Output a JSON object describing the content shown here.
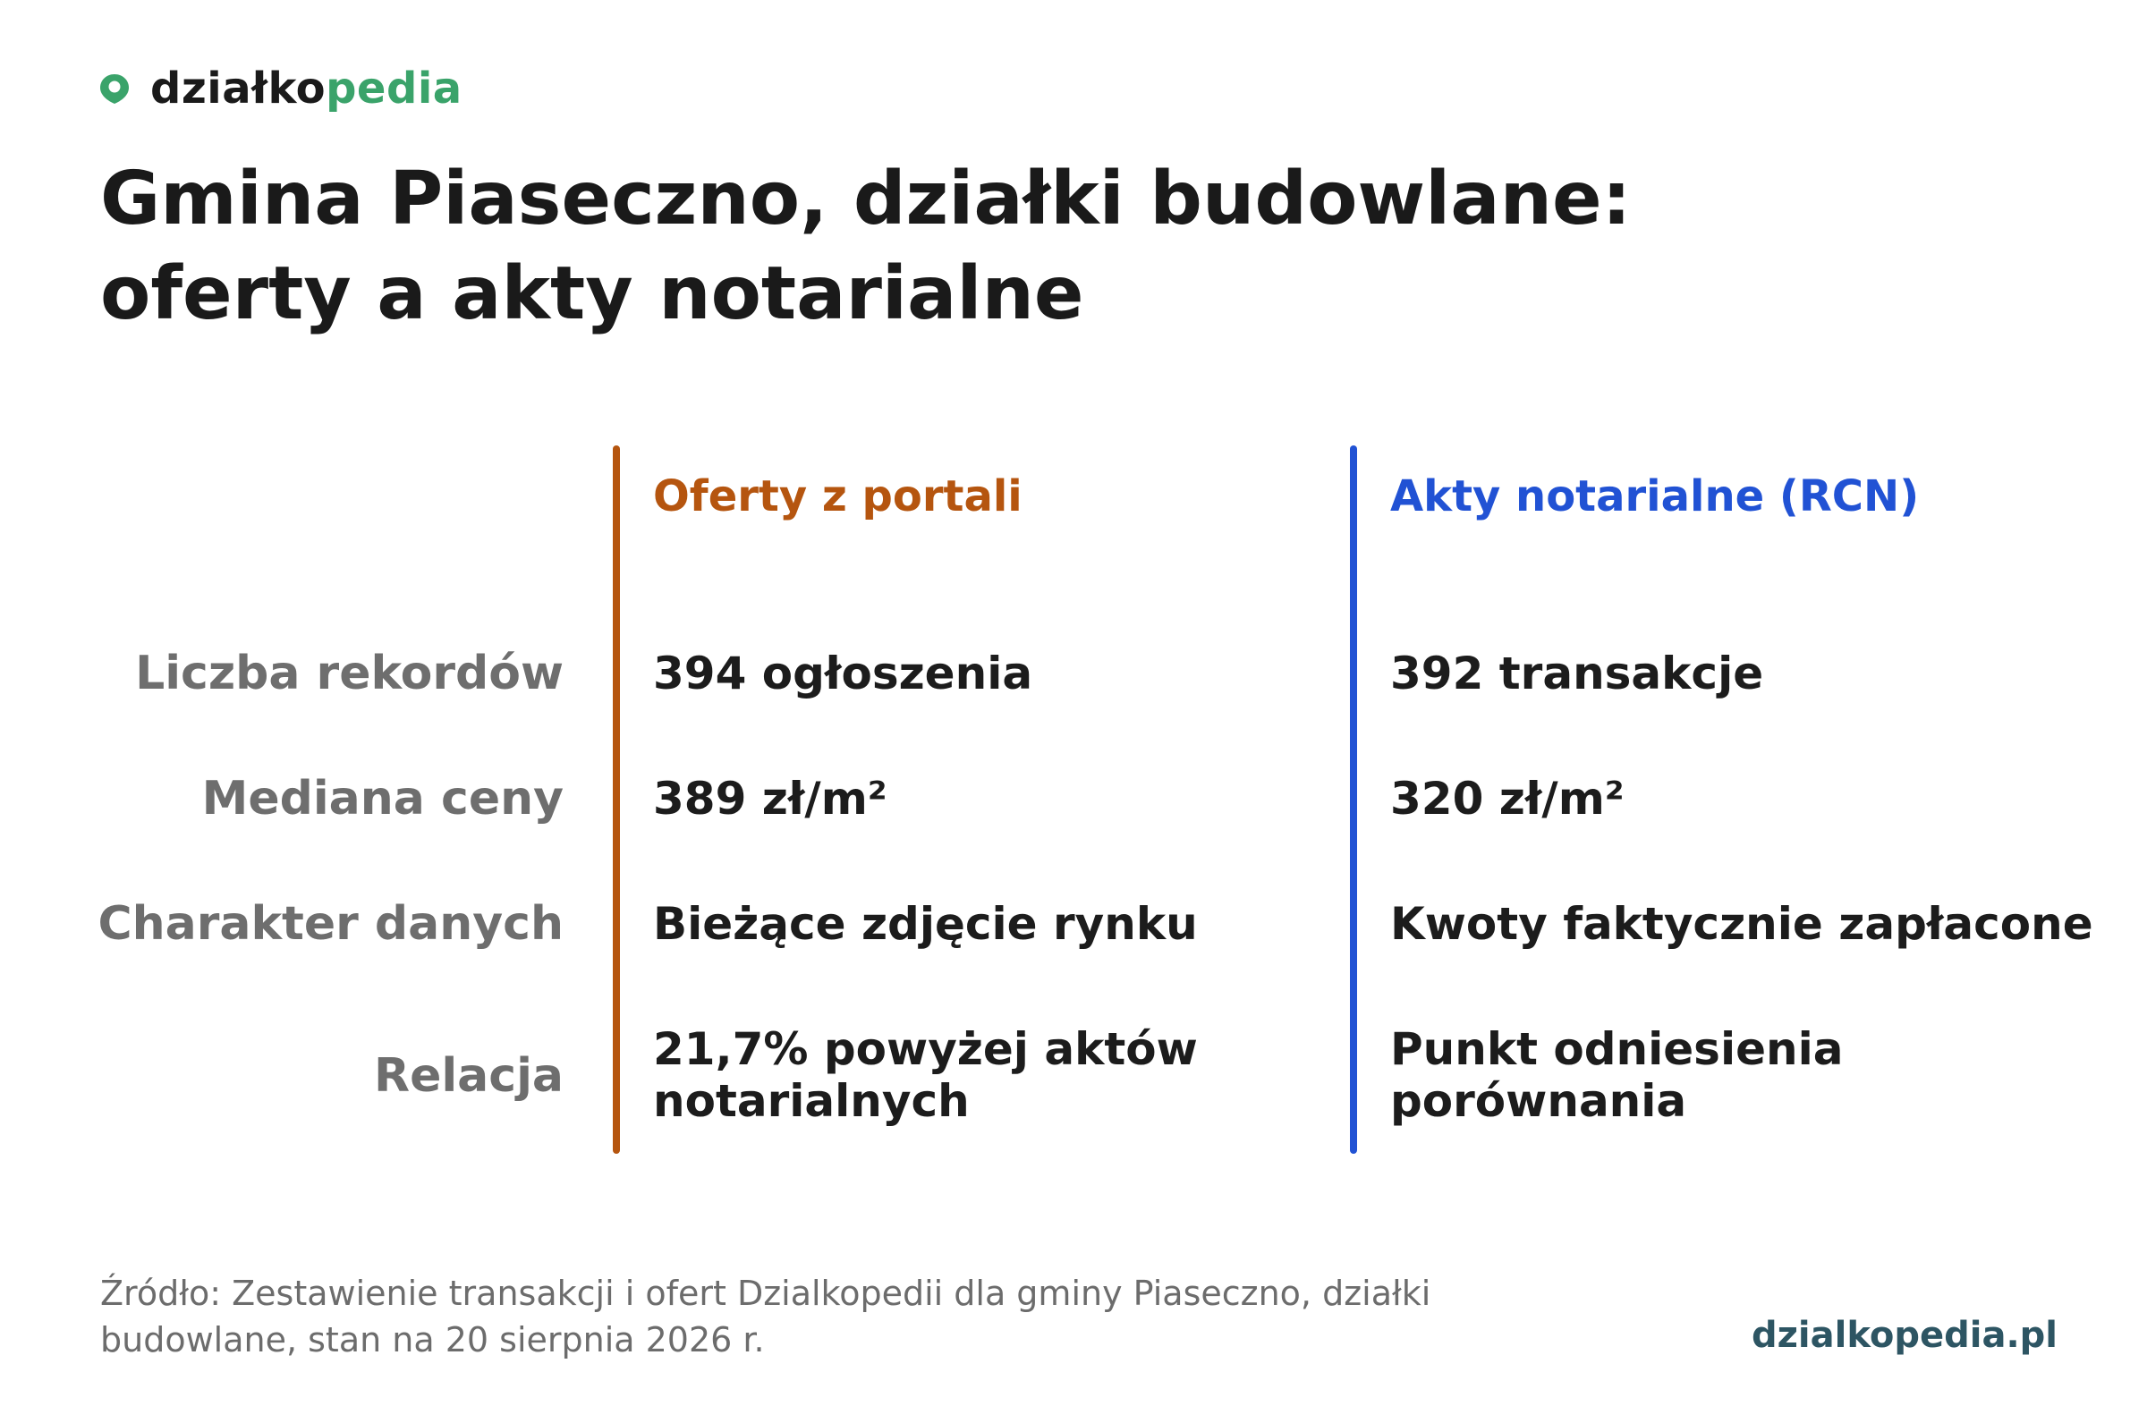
{
  "brand": {
    "name_dark": "działko",
    "name_green": "pedia",
    "color_green": "#3aa36a"
  },
  "title": "Gmina Piaseczno, działki budowlane: oferty a akty notarialne",
  "columns": [
    {
      "header": "Oferty z portali",
      "color": "#b5550f"
    },
    {
      "header": "Akty notarialne (RCN)",
      "color": "#2152d4"
    }
  ],
  "rows": [
    {
      "label": "Liczba rekordów",
      "offers": "394 ogłoszenia",
      "deeds": "392 transakcje"
    },
    {
      "label": "Mediana ceny",
      "offers": "389 zł/m²",
      "deeds": "320 zł/m²"
    },
    {
      "label": "Charakter danych",
      "offers": "Bieżące zdjęcie rynku",
      "deeds": "Kwoty faktycznie zapłacone"
    },
    {
      "label": "Relacja",
      "offers": "21,7% powyżej aktów notarialnych",
      "deeds": "Punkt odniesienia porównania"
    }
  ],
  "source": "Źródło: Zestawienie transakcji i ofert Dzialkopedii dla gminy Piaseczno, działki budowlane, stan na 20 sierpnia 2026 r.",
  "site": "dzialkopedia.pl"
}
